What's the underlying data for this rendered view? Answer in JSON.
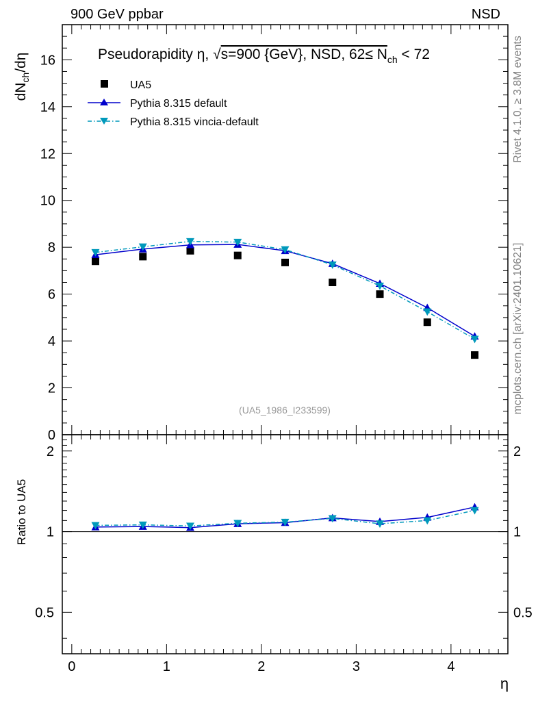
{
  "header": {
    "left": "900 GeV ppbar",
    "right": "NSD"
  },
  "side_labels": {
    "rivet": "Rivet 4.1.0, ≥ 3.8M events",
    "mcplots": "mcplots.cern.ch [arXiv:2401.10621]"
  },
  "chart_data": {
    "type": "scatter",
    "title_parts": {
      "prefix": "Pseudorapidity η, ",
      "sqrt": "√",
      "s_label": "s=900 {GeV}, NSD, 62≤ N",
      "sub": "ch",
      "suffix": " < 72"
    },
    "analysis_label": "(UA5_1986_I233599)",
    "xlabel": "η",
    "ylabel_main": {
      "base": "dN",
      "sub": "ch",
      "tail": "/dη"
    },
    "ylabel_ratio": "Ratio to UA5",
    "xlim": [
      -0.1,
      4.6
    ],
    "ylim_main": [
      0,
      17.5
    ],
    "ylim_ratio": [
      0.35,
      2.3
    ],
    "x_ticks": [
      "0",
      "1",
      "2",
      "3",
      "4"
    ],
    "y_ticks_main": [
      "0",
      "2",
      "4",
      "6",
      "8",
      "10",
      "12",
      "14",
      "16"
    ],
    "y_ticks_ratio": [
      "0.5",
      "1",
      "2"
    ],
    "x": [
      0.25,
      0.75,
      1.25,
      1.75,
      2.25,
      2.75,
      3.25,
      3.75,
      4.25
    ],
    "series": [
      {
        "name": "UA5",
        "style": "marker-square",
        "color": "#000000",
        "values": [
          7.4,
          7.6,
          7.85,
          7.65,
          7.35,
          6.5,
          6.0,
          4.8,
          3.4
        ]
      },
      {
        "name": "Pythia 8.315 default",
        "style": "solid-triangle-up",
        "color": "#0000cc",
        "values": [
          7.68,
          7.92,
          8.1,
          8.12,
          7.85,
          7.3,
          6.45,
          5.42,
          4.2
        ],
        "ratio": [
          1.04,
          1.045,
          1.035,
          1.07,
          1.08,
          1.125,
          1.09,
          1.13,
          1.235
        ]
      },
      {
        "name": "Pythia 8.315 vincia-default",
        "style": "dashdot-triangle-down",
        "color": "#0099bb",
        "values": [
          7.78,
          8.02,
          8.25,
          8.22,
          7.9,
          7.25,
          6.35,
          5.25,
          4.08
        ],
        "ratio": [
          1.055,
          1.06,
          1.05,
          1.075,
          1.085,
          1.12,
          1.07,
          1.1,
          1.2
        ]
      }
    ]
  }
}
